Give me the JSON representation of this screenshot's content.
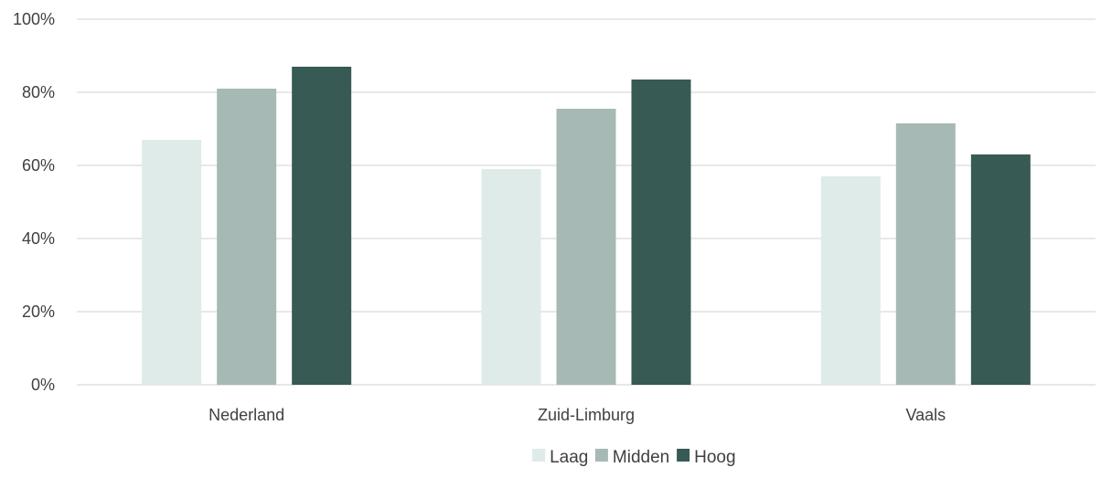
{
  "chart_data": {
    "type": "bar",
    "categories": [
      "Nederland",
      "Zuid-Limburg",
      "Vaals"
    ],
    "series": [
      {
        "name": "Laag",
        "values": [
          67,
          59,
          57
        ],
        "color": "#deebe8"
      },
      {
        "name": "Midden",
        "values": [
          81,
          75.5,
          71.5
        ],
        "color": "#a6b9b5"
      },
      {
        "name": "Hoog",
        "values": [
          87,
          83.5,
          63
        ],
        "color": "#375a54"
      }
    ],
    "ylim": [
      0,
      100
    ],
    "yticks": [
      0,
      20,
      40,
      60,
      80,
      100
    ],
    "ytick_labels": [
      "0%",
      "20%",
      "40%",
      "60%",
      "80%",
      "100%"
    ],
    "grid": true,
    "legend_position": "bottom-center"
  }
}
